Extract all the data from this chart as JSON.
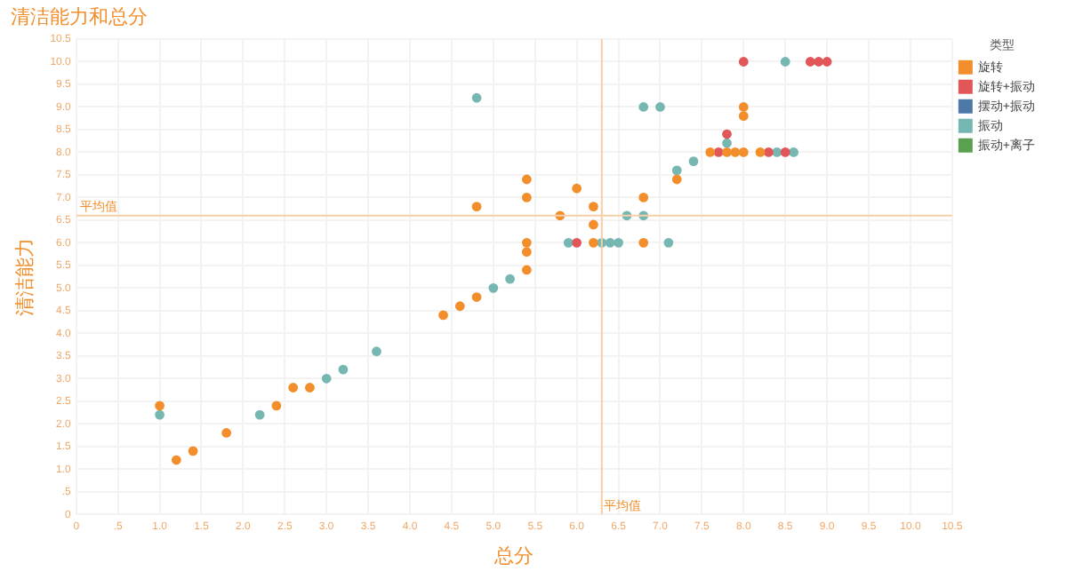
{
  "chart_data": {
    "type": "scatter",
    "title": "清洁能力和总分",
    "xlabel": "总分",
    "ylabel": "清洁能力",
    "legend_title": "类型",
    "legend": "right",
    "grid": true,
    "marker": "circle",
    "xlim": [
      0,
      10.5
    ],
    "ylim": [
      0,
      10.5
    ],
    "xticks": [
      0,
      {
        "value": 0.5,
        "label": ".5"
      },
      {
        "value": 1,
        "label": "1.0"
      },
      1.5,
      {
        "value": 2,
        "label": "2.0"
      },
      2.5,
      {
        "value": 3,
        "label": "3.0"
      },
      3.5,
      {
        "value": 4,
        "label": "4.0"
      },
      4.5,
      {
        "value": 5,
        "label": "5.0"
      },
      5.5,
      {
        "value": 6,
        "label": "6.0"
      },
      6.5,
      {
        "value": 7,
        "label": "7.0"
      },
      7.5,
      {
        "value": 8,
        "label": "8.0"
      },
      8.5,
      {
        "value": 9,
        "label": "9.0"
      },
      9.5,
      {
        "value": 10,
        "label": "10.0"
      },
      10.5
    ],
    "yticks": [
      0,
      {
        "value": 0.5,
        "label": ".5"
      },
      {
        "value": 1,
        "label": "1.0"
      },
      1.5,
      {
        "value": 2,
        "label": "2.0"
      },
      2.5,
      {
        "value": 3,
        "label": "3.0"
      },
      3.5,
      {
        "value": 4,
        "label": "4.0"
      },
      4.5,
      {
        "value": 5,
        "label": "5.0"
      },
      5.5,
      {
        "value": 6,
        "label": "6.0"
      },
      6.5,
      {
        "value": 7,
        "label": "7.0"
      },
      7.5,
      {
        "value": 8,
        "label": "8.0"
      },
      8.5,
      {
        "value": 9,
        "label": "9.0"
      },
      9.5,
      {
        "value": 10,
        "label": "10.0"
      },
      10.5
    ],
    "ref_lines": [
      {
        "axis": "x",
        "value": 6.3,
        "label": "平均值",
        "color": "#f6cfa8"
      },
      {
        "axis": "y",
        "value": 6.6,
        "label": "平均值",
        "color": "#f6cfa8"
      }
    ],
    "series": [
      {
        "name": "旋转",
        "color": "#f28e2b",
        "x": [
          1.0,
          1.2,
          1.4,
          1.8,
          2.4,
          2.6,
          2.8,
          4.4,
          4.6,
          4.8,
          4.8,
          5.4,
          5.4,
          5.4,
          5.4,
          5.4,
          5.8,
          6.0,
          6.2,
          6.2,
          6.2,
          6.8,
          6.8,
          7.2,
          7.6,
          7.8,
          7.9,
          8.0,
          8.0,
          8.0,
          8.2
        ],
        "values": [
          2.4,
          1.2,
          1.4,
          1.8,
          2.4,
          2.8,
          2.8,
          4.4,
          4.6,
          4.8,
          6.8,
          5.4,
          5.8,
          7.0,
          7.4,
          6.0,
          6.6,
          7.2,
          6.8,
          6.4,
          6.0,
          7.0,
          6.0,
          7.4,
          8.0,
          8.0,
          8.0,
          8.0,
          8.8,
          9.0,
          8.0
        ]
      },
      {
        "name": "旋转+振动",
        "color": "#e15759",
        "x": [
          6.0,
          7.7,
          7.8,
          8.3,
          8.5,
          8.0,
          8.8,
          8.9,
          9.0
        ],
        "values": [
          6.0,
          8.0,
          8.4,
          8.0,
          8.0,
          10.0,
          10.0,
          10.0,
          10.0
        ]
      },
      {
        "name": "摆动+振动",
        "color": "#4e79a7"
      },
      {
        "name": "振动",
        "color": "#76b7b2",
        "x": [
          1.0,
          2.2,
          3.0,
          3.2,
          3.6,
          4.8,
          5.0,
          5.2,
          5.9,
          6.3,
          6.4,
          6.5,
          6.6,
          6.8,
          7.1,
          6.8,
          7.0,
          7.2,
          7.4,
          7.8,
          8.4,
          8.6,
          8.5
        ],
        "values": [
          2.2,
          2.2,
          3.0,
          3.2,
          3.6,
          9.2,
          5.0,
          5.2,
          6.0,
          6.0,
          6.0,
          6.0,
          6.6,
          6.6,
          6.0,
          9.0,
          9.0,
          7.6,
          7.8,
          8.2,
          8.0,
          8.0,
          10.0
        ]
      },
      {
        "name": "振动+离子",
        "color": "#59a14f"
      }
    ]
  }
}
